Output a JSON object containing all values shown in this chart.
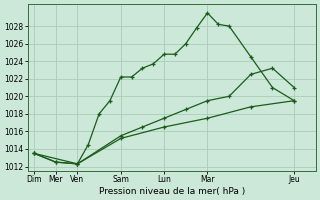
{
  "bg_color": "#cce8d8",
  "grid_color": "#aaccb8",
  "line_color": "#1a5c1a",
  "xlabel": "Pression niveau de la mer( hPa )",
  "ylim": [
    1011.5,
    1030.5
  ],
  "yticks": [
    1012,
    1014,
    1016,
    1018,
    1020,
    1022,
    1024,
    1026,
    1028
  ],
  "xtick_positions": [
    0,
    1,
    2,
    4,
    6,
    8,
    12
  ],
  "xtick_labels": [
    "Dim",
    "Mer",
    "Ven",
    "Sam",
    "Lun",
    "Mar",
    "Jeu"
  ],
  "xlim": [
    -0.3,
    13.0
  ],
  "series1": {
    "x": [
      0,
      1,
      2,
      2.5,
      3,
      3.5,
      4,
      4.5,
      5,
      5.5,
      6,
      6.5,
      7,
      7.5,
      8,
      8.5,
      9,
      10,
      11,
      12
    ],
    "y": [
      1013.5,
      1012.5,
      1012.3,
      1014.5,
      1018.0,
      1019.5,
      1022.2,
      1022.2,
      1023.2,
      1023.7,
      1024.8,
      1024.8,
      1026.0,
      1027.8,
      1029.5,
      1028.2,
      1028.0,
      1024.5,
      1021.0,
      1019.5
    ]
  },
  "series2": {
    "x": [
      0,
      1,
      2,
      4,
      5,
      6,
      7,
      8,
      9,
      10,
      11,
      12
    ],
    "y": [
      1013.5,
      1012.5,
      1012.3,
      1015.5,
      1016.5,
      1017.5,
      1018.5,
      1019.5,
      1020.0,
      1022.5,
      1023.2,
      1021.0
    ]
  },
  "series3": {
    "x": [
      0,
      2,
      4,
      6,
      8,
      10,
      12
    ],
    "y": [
      1013.5,
      1012.3,
      1015.2,
      1016.5,
      1017.5,
      1018.8,
      1019.5
    ]
  }
}
